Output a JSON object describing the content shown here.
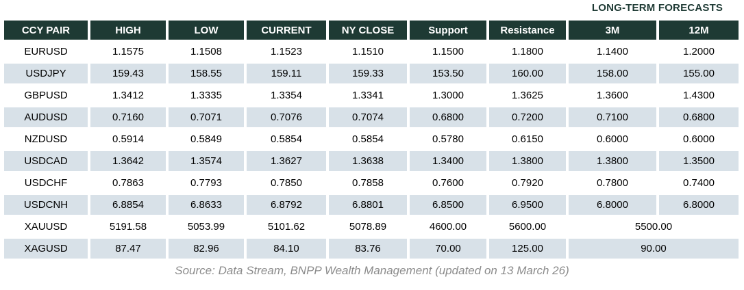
{
  "long_term_label": "LONG-TERM FORECASTS",
  "table": {
    "headers": [
      "CCY PAIR",
      "HIGH",
      "LOW",
      "CURRENT",
      "NY CLOSE",
      "Support",
      "Resistance",
      "3M",
      "12M"
    ],
    "rows": [
      {
        "pair": "EURUSD",
        "cells": [
          "1.1575",
          "1.1508",
          "1.1523",
          "1.1510",
          "1.1500",
          "1.1800",
          "1.1400",
          "1.2000"
        ]
      },
      {
        "pair": "USDJPY",
        "cells": [
          "159.43",
          "158.55",
          "159.11",
          "159.33",
          "153.50",
          "160.00",
          "158.00",
          "155.00"
        ]
      },
      {
        "pair": "GBPUSD",
        "cells": [
          "1.3412",
          "1.3335",
          "1.3354",
          "1.3341",
          "1.3000",
          "1.3625",
          "1.3600",
          "1.4300"
        ]
      },
      {
        "pair": "AUDUSD",
        "cells": [
          "0.7160",
          "0.7071",
          "0.7076",
          "0.7074",
          "0.6800",
          "0.7200",
          "0.7100",
          "0.6800"
        ]
      },
      {
        "pair": "NZDUSD",
        "cells": [
          "0.5914",
          "0.5849",
          "0.5854",
          "0.5854",
          "0.5780",
          "0.6150",
          "0.6000",
          "0.6000"
        ]
      },
      {
        "pair": "USDCAD",
        "cells": [
          "1.3642",
          "1.3574",
          "1.3627",
          "1.3638",
          "1.3400",
          "1.3800",
          "1.3800",
          "1.3500"
        ]
      },
      {
        "pair": "USDCHF",
        "cells": [
          "0.7863",
          "0.7793",
          "0.7850",
          "0.7858",
          "0.7600",
          "0.7920",
          "0.7800",
          "0.7400"
        ]
      },
      {
        "pair": "USDCNH",
        "cells": [
          "6.8854",
          "6.8633",
          "6.8792",
          "6.8801",
          "6.8500",
          "6.9500",
          "6.8000",
          "6.8000"
        ]
      },
      {
        "pair": "XAUUSD",
        "cells": [
          "5191.58",
          "5053.99",
          "5101.62",
          "5078.89",
          "4600.00",
          "5600.00"
        ],
        "forecast_merged": "5500.00"
      },
      {
        "pair": "XAGUSD",
        "cells": [
          "87.47",
          "82.96",
          "84.10",
          "83.76",
          "70.00",
          "125.00"
        ],
        "forecast_merged": "90.00"
      }
    ]
  },
  "source_note": "Source: Data Stream, BNPP Wealth Management (updated on 13 March 26)",
  "colors": {
    "header_bg": "#1e3a34",
    "alt_row_bg": "#d8e1e8",
    "source_text": "#8c8c8c"
  }
}
